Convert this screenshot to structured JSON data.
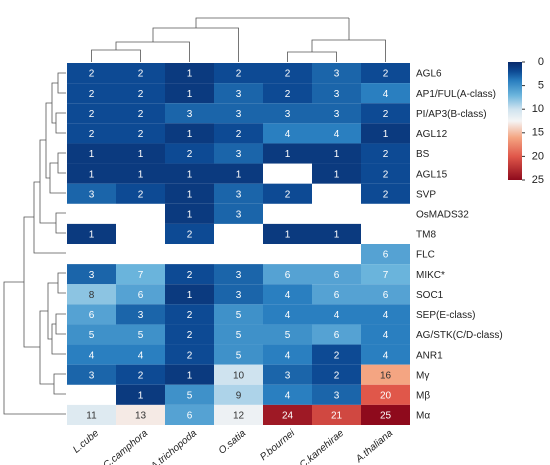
{
  "chart_data": {
    "type": "heatmap",
    "columns": [
      "L.cube",
      "C.camphora",
      "A.trichopoda",
      "O.satia",
      "P.bournei",
      "C.kanehirae",
      "A.thaliana"
    ],
    "rows": [
      "AGL6",
      "AP1/FUL(A-class)",
      "PI/AP3(B-class)",
      "AGL12",
      "BS",
      "AGL15",
      "SVP",
      "OsMADS32",
      "TM8",
      "FLC",
      "MIKC*",
      "SOC1",
      "SEP(E-class)",
      "AG/STK(C/D-class)",
      "ANR1",
      "Mγ",
      "Mβ",
      "Mα"
    ],
    "values": [
      [
        2,
        2,
        1,
        2,
        2,
        3,
        2
      ],
      [
        2,
        2,
        1,
        3,
        2,
        3,
        4
      ],
      [
        2,
        2,
        3,
        3,
        3,
        3,
        2
      ],
      [
        2,
        2,
        1,
        2,
        4,
        4,
        1
      ],
      [
        1,
        1,
        2,
        3,
        1,
        1,
        2
      ],
      [
        1,
        1,
        1,
        1,
        null,
        1,
        2
      ],
      [
        3,
        2,
        1,
        3,
        2,
        null,
        2
      ],
      [
        null,
        null,
        1,
        3,
        null,
        null,
        null
      ],
      [
        1,
        null,
        2,
        null,
        1,
        1,
        null
      ],
      [
        null,
        null,
        null,
        null,
        null,
        null,
        6
      ],
      [
        3,
        7,
        2,
        3,
        6,
        6,
        7
      ],
      [
        8,
        6,
        1,
        3,
        4,
        6,
        6
      ],
      [
        6,
        3,
        2,
        5,
        4,
        4,
        4
      ],
      [
        5,
        5,
        2,
        5,
        5,
        6,
        4
      ],
      [
        4,
        4,
        2,
        5,
        4,
        2,
        4
      ],
      [
        3,
        2,
        1,
        10,
        3,
        2,
        16
      ],
      [
        null,
        1,
        5,
        9,
        4,
        3,
        20
      ],
      [
        11,
        13,
        6,
        12,
        24,
        21,
        25
      ]
    ],
    "colormap": "RdBu",
    "clim": [
      0,
      25
    ],
    "colorbar_ticks": [
      0,
      5,
      10,
      15,
      20,
      25
    ]
  }
}
